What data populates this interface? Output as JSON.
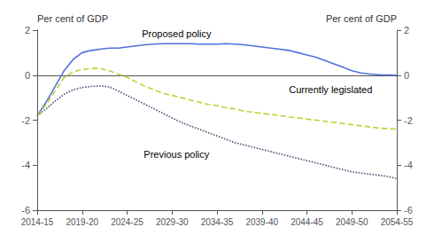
{
  "chart_data": {
    "type": "line",
    "ylabel": "Per cent of GDP",
    "y2label": "Per cent of GDP",
    "x": [
      2014.5,
      2015.5,
      2016.5,
      2017.5,
      2018.5,
      2019.5,
      2020.5,
      2021.5,
      2022.5,
      2023.5,
      2024.5,
      2025.5,
      2026.5,
      2027.5,
      2028.5,
      2029.5,
      2030.5,
      2031.5,
      2032.5,
      2033.5,
      2034.5,
      2035.5,
      2036.5,
      2037.5,
      2038.5,
      2039.5,
      2040.5,
      2041.5,
      2042.5,
      2043.5,
      2044.5,
      2045.5,
      2046.5,
      2047.5,
      2048.5,
      2049.5,
      2050.5,
      2051.5,
      2052.5,
      2053.5,
      2054.5
    ],
    "series": [
      {
        "name": "Proposed policy",
        "line_style": "solid",
        "values": [
          -1.8,
          -1.2,
          -0.5,
          0.2,
          0.7,
          1.0,
          1.1,
          1.15,
          1.2,
          1.2,
          1.25,
          1.3,
          1.35,
          1.38,
          1.4,
          1.4,
          1.4,
          1.4,
          1.38,
          1.38,
          1.38,
          1.4,
          1.38,
          1.35,
          1.3,
          1.25,
          1.2,
          1.15,
          1.1,
          1.0,
          0.9,
          0.8,
          0.65,
          0.5,
          0.35,
          0.2,
          0.1,
          0.05,
          0.02,
          0.01,
          0.0
        ]
      },
      {
        "name": "Currently legislated",
        "line_style": "dashed",
        "values": [
          -1.8,
          -1.3,
          -0.7,
          -0.1,
          0.15,
          0.25,
          0.3,
          0.3,
          0.2,
          0.05,
          -0.1,
          -0.3,
          -0.5,
          -0.65,
          -0.8,
          -0.9,
          -1.0,
          -1.1,
          -1.2,
          -1.3,
          -1.35,
          -1.45,
          -1.5,
          -1.6,
          -1.65,
          -1.7,
          -1.75,
          -1.8,
          -1.85,
          -1.9,
          -1.95,
          -2.0,
          -2.05,
          -2.1,
          -2.15,
          -2.2,
          -2.25,
          -2.3,
          -2.35,
          -2.38,
          -2.4
        ]
      },
      {
        "name": "Previous policy",
        "line_style": "dotted",
        "values": [
          -1.8,
          -1.5,
          -1.15,
          -0.85,
          -0.65,
          -0.55,
          -0.5,
          -0.48,
          -0.52,
          -0.7,
          -0.9,
          -1.1,
          -1.3,
          -1.5,
          -1.7,
          -1.9,
          -2.1,
          -2.25,
          -2.4,
          -2.55,
          -2.7,
          -2.85,
          -3.0,
          -3.1,
          -3.2,
          -3.3,
          -3.4,
          -3.5,
          -3.6,
          -3.7,
          -3.8,
          -3.9,
          -4.0,
          -4.1,
          -4.2,
          -4.3,
          -4.35,
          -4.4,
          -4.45,
          -4.5,
          -4.6
        ]
      }
    ],
    "xlim": [
      2014.5,
      2054.5
    ],
    "xticks": [
      {
        "value": 2014.5,
        "label": "2014-15"
      },
      {
        "value": 2019.5,
        "label": "2019-20"
      },
      {
        "value": 2024.5,
        "label": "2024-25"
      },
      {
        "value": 2029.5,
        "label": "2029-30"
      },
      {
        "value": 2034.5,
        "label": "2034-35"
      },
      {
        "value": 2039.5,
        "label": "2039-40"
      },
      {
        "value": 2044.5,
        "label": "2044-45"
      },
      {
        "value": 2049.5,
        "label": "2049-50"
      },
      {
        "value": 2054.5,
        "label": "2054-55"
      }
    ],
    "ylim": [
      -6,
      2
    ],
    "yticks": [
      -6,
      -4,
      -2,
      0,
      2
    ],
    "y2lim": [
      -6,
      2
    ],
    "y2ticks": [
      -6,
      -4,
      -2,
      0,
      2
    ],
    "grid": false,
    "annotations": [
      {
        "text": "Proposed policy",
        "x": 2030.0,
        "y": 1.62
      },
      {
        "text": "Currently legislated",
        "x": 2042.5,
        "y": -0.42
      },
      {
        "text": "Previous policy",
        "x": 2030.0,
        "y": -3.3
      }
    ]
  }
}
